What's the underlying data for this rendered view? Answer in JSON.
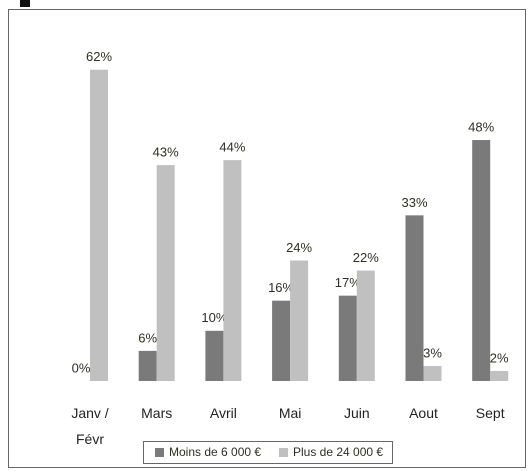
{
  "chart_data": {
    "type": "bar",
    "categories": [
      "Janv / Févr",
      "Mars",
      "Avril",
      "Mai",
      "Juin",
      "Aout",
      "Sept"
    ],
    "series": [
      {
        "name": "Moins de 6 000 €",
        "color": "#7a7a7a",
        "values": [
          0,
          6,
          10,
          16,
          17,
          33,
          48
        ],
        "value_labels": [
          "0%",
          "6%",
          "10%",
          "16%",
          "17%",
          "33%",
          "48%"
        ]
      },
      {
        "name": "Plus de 24 000 €",
        "color": "#c0c0c0",
        "values": [
          62,
          43,
          44,
          24,
          22,
          3,
          2
        ],
        "value_labels": [
          "62%",
          "43%",
          "44%",
          "24%",
          "22%",
          "3%",
          "2%"
        ]
      }
    ],
    "legend": "bottom"
  }
}
